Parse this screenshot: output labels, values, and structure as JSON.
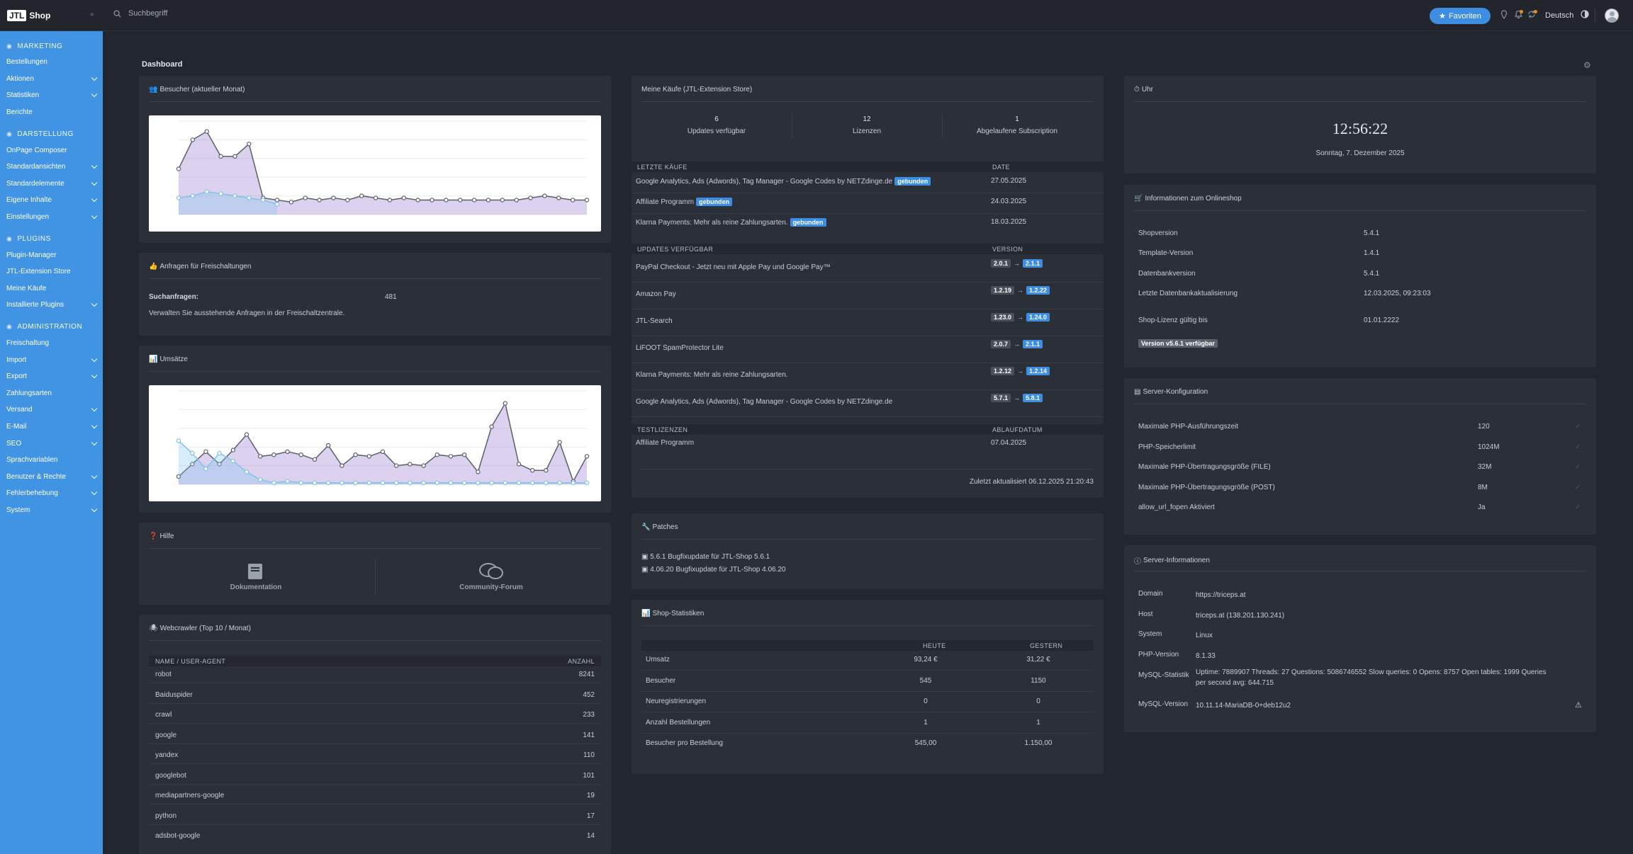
{
  "app": {
    "logo": "JTL",
    "name": "Shop",
    "title": "Dashboard"
  },
  "search": {
    "placeholder": "Suchbegriff"
  },
  "header": {
    "favorites": "Favoriten",
    "language": "Deutsch"
  },
  "sidebar": {
    "sections": [
      {
        "title": "MARKETING",
        "icon": "megaphone-icon",
        "items": [
          {
            "label": "Bestellungen",
            "expandable": false
          },
          {
            "label": "Aktionen",
            "expandable": true
          },
          {
            "label": "Statistiken",
            "expandable": true
          },
          {
            "label": "Berichte",
            "expandable": false
          }
        ]
      },
      {
        "title": "DARSTELLUNG",
        "icon": "brush-icon",
        "items": [
          {
            "label": "OnPage Composer",
            "expandable": false
          },
          {
            "label": "Standardansichten",
            "expandable": true
          },
          {
            "label": "Standardelemente",
            "expandable": true
          },
          {
            "label": "Eigene Inhalte",
            "expandable": true
          },
          {
            "label": "Einstellungen",
            "expandable": true
          }
        ]
      },
      {
        "title": "PLUGINS",
        "icon": "puzzle-icon",
        "items": [
          {
            "label": "Plugin-Manager",
            "expandable": false
          },
          {
            "label": "JTL-Extension Store",
            "expandable": false
          },
          {
            "label": "Meine Käufe",
            "expandable": false
          },
          {
            "label": "Installierte Plugins",
            "expandable": true
          }
        ]
      },
      {
        "title": "ADMINISTRATION",
        "icon": "gear-icon",
        "items": [
          {
            "label": "Freischaltung",
            "expandable": false
          },
          {
            "label": "Import",
            "expandable": true
          },
          {
            "label": "Export",
            "expandable": true
          },
          {
            "label": "Zahlungsarten",
            "expandable": false
          },
          {
            "label": "Versand",
            "expandable": true
          },
          {
            "label": "E-Mail",
            "expandable": true
          },
          {
            "label": "SEO",
            "expandable": true
          },
          {
            "label": "Sprachvariablen",
            "expandable": false
          },
          {
            "label": "Benutzer & Rechte",
            "expandable": true
          },
          {
            "label": "Fehlerbehebung",
            "expandable": true
          },
          {
            "label": "System",
            "expandable": true
          }
        ]
      }
    ]
  },
  "visitors": {
    "title": "Besucher (aktueller Monat)"
  },
  "requests": {
    "title": "Anfragen für Freischaltungen",
    "label": "Suchanfragen:",
    "value": "481",
    "note": "Verwalten Sie ausstehende Anfragen in der Freischaltzentrale."
  },
  "sales": {
    "title": "Umsätze"
  },
  "help": {
    "title": "Hilfe",
    "doc": "Dokumentation",
    "forum": "Community-Forum"
  },
  "crawler": {
    "title": "Webcrawler (Top 10 / Monat)",
    "col_name": "NAME / USER-AGENT",
    "col_count": "ANZAHL",
    "rows": [
      {
        "name": "robot",
        "count": "8241"
      },
      {
        "name": "Baiduspider",
        "count": "452"
      },
      {
        "name": "crawl",
        "count": "233"
      },
      {
        "name": "google",
        "count": "141"
      },
      {
        "name": "yandex",
        "count": "110"
      },
      {
        "name": "googlebot",
        "count": "101"
      },
      {
        "name": "mediapartners-google",
        "count": "19"
      },
      {
        "name": "python",
        "count": "17"
      },
      {
        "name": "adsbot-google",
        "count": "14"
      }
    ]
  },
  "purchases": {
    "title": "Meine Käufe (JTL-Extension Store)",
    "stats": [
      {
        "num": "6",
        "label": "Updates verfügbar"
      },
      {
        "num": "12",
        "label": "Lizenzen"
      },
      {
        "num": "1",
        "label": "Abgelaufene Subscription"
      }
    ],
    "recent_head": "LETZTE KÄUFE",
    "recent_col": "DATE",
    "recent": [
      {
        "name": "Google Analytics, Ads (Adwords), Tag Manager - Google Codes by NETZdinge.de",
        "badge": "gebunden",
        "date": "27.05.2025"
      },
      {
        "name": "Affiliate Programm",
        "badge": "gebunden",
        "date": "24.03.2025"
      },
      {
        "name": "Klarna Payments: Mehr als reine Zahlungsarten.",
        "badge": "gebunden",
        "date": "18.03.2025"
      }
    ],
    "updates_head": "UPDATES VERFÜGBAR",
    "updates_col": "VERSION",
    "updates": [
      {
        "name": "PayPal Checkout - Jetzt neu mit Apple Pay und Google Pay™",
        "from": "2.0.1",
        "to": "2.1.1"
      },
      {
        "name": "Amazon Pay",
        "from": "1.2.19",
        "to": "1.2.22"
      },
      {
        "name": "JTL-Search",
        "from": "1.23.0",
        "to": "1.24.0"
      },
      {
        "name": "LiFOOT SpamProtector Lite",
        "from": "2.0.7",
        "to": "2.1.1"
      },
      {
        "name": "Klarna Payments: Mehr als reine Zahlungsarten.",
        "from": "1.2.12",
        "to": "1.2.14"
      },
      {
        "name": "Google Analytics, Ads (Adwords), Tag Manager - Google Codes by NETZdinge.de",
        "from": "5.7.1",
        "to": "5.8.1"
      }
    ],
    "test_head": "TESTLIZENZEN",
    "test_col": "ABLAUFDATUM",
    "test": [
      {
        "name": "Affiliate Programm",
        "date": "07.04.2025"
      }
    ],
    "updated": "Zuletzt aktualisiert 06.12.2025 21:20:43"
  },
  "patches": {
    "title": "Patches",
    "items": [
      "5.6.1 Bugfixupdate für JTL-Shop 5.6.1",
      "4.06.20 Bugfixupdate für JTL-Shop 4.06.20"
    ]
  },
  "shopstats": {
    "title": "Shop-Statistiken",
    "col_today": "HEUTE",
    "col_yesterday": "GESTERN",
    "rows": [
      {
        "label": "Umsatz",
        "today": "93,24 €",
        "yesterday": "31,22 €"
      },
      {
        "label": "Besucher",
        "today": "545",
        "yesterday": "1150"
      },
      {
        "label": "Neuregistrierungen",
        "today": "0",
        "yesterday": "0"
      },
      {
        "label": "Anzahl Bestellungen",
        "today": "1",
        "yesterday": "1"
      },
      {
        "label": "Besucher pro Bestellung",
        "today": "545,00",
        "yesterday": "1.150,00"
      }
    ]
  },
  "clock": {
    "title": "Uhr",
    "time": "12:56:22",
    "date": "Sonntag, 7. Dezember 2025"
  },
  "shopinfo": {
    "title": "Informationen zum Onlineshop",
    "rows": [
      {
        "label": "Shopversion",
        "value": "5.4.1"
      },
      {
        "label": "Template-Version",
        "value": "1.4.1"
      },
      {
        "label": "Datenbankversion",
        "value": "5.4.1"
      },
      {
        "label": "Letzte Datenbankaktualisierung",
        "value": "12.03.2025, 09:23:03"
      },
      {
        "label": "Shop-Lizenz gültig bis",
        "value": "01.01.2222"
      }
    ],
    "version_badge": "Version v5.6.1 verfügbar"
  },
  "serverconfig": {
    "title": "Server-Konfiguration",
    "rows": [
      {
        "label": "Maximale PHP-Ausführungszeit",
        "value": "120"
      },
      {
        "label": "PHP-Speicherlimit",
        "value": "1024M"
      },
      {
        "label": "Maximale PHP-Übertragungsgröße (FILE)",
        "value": "32M"
      },
      {
        "label": "Maximale PHP-Übertragungsgröße (POST)",
        "value": "8M"
      },
      {
        "label": "allow_url_fopen Aktiviert",
        "value": "Ja"
      }
    ]
  },
  "serverinfo": {
    "title": "Server-Informationen",
    "rows": [
      {
        "label": "Domain",
        "value": "https://triceps.at"
      },
      {
        "label": "Host",
        "value": "triceps.at (138.201.130.241)"
      },
      {
        "label": "System",
        "value": "Linux"
      },
      {
        "label": "PHP-Version",
        "value": "8.1.33"
      },
      {
        "label": "MySQL-Statistik",
        "value": "Uptime: 7889907 Threads: 27 Questions: 5086746552 Slow queries: 0 Opens: 8757 Open tables: 1999 Queries per second avg: 644.715"
      },
      {
        "label": "MySQL-Version",
        "value": "10.11.14-MariaDB-0+deb12u2"
      }
    ]
  },
  "colors": {
    "accent": "#4194e4",
    "purple": "#9b7fd4",
    "light_blue": "#7ec3ea"
  },
  "chart_data": [
    {
      "type": "area",
      "series": [
        {
          "values": [
            22,
            36,
            40,
            28,
            28,
            34,
            8,
            7,
            6,
            8,
            7,
            8,
            7,
            9,
            8,
            7,
            8,
            7,
            7,
            7,
            7,
            7,
            7,
            7,
            7,
            8,
            9,
            8,
            7,
            7
          ]
        },
        {
          "values": [
            8,
            9,
            11,
            10,
            9,
            8,
            7,
            5
          ]
        }
      ]
    },
    {
      "type": "area",
      "series": [
        {
          "values": [
            50,
            130,
            210,
            130,
            220,
            320,
            180,
            190,
            210,
            190,
            160,
            250,
            120,
            190,
            180,
            210,
            120,
            130,
            120,
            190,
            180,
            190,
            80,
            370,
            520,
            130,
            90,
            90,
            270,
            20,
            180
          ]
        },
        {
          "values": [
            280,
            200,
            100,
            200,
            150,
            80,
            30,
            10,
            20,
            10,
            10,
            10,
            10,
            10,
            10,
            10,
            10,
            10,
            10,
            10,
            10,
            10,
            10,
            10,
            10,
            10,
            10,
            10,
            10,
            10,
            10
          ]
        }
      ]
    }
  ]
}
